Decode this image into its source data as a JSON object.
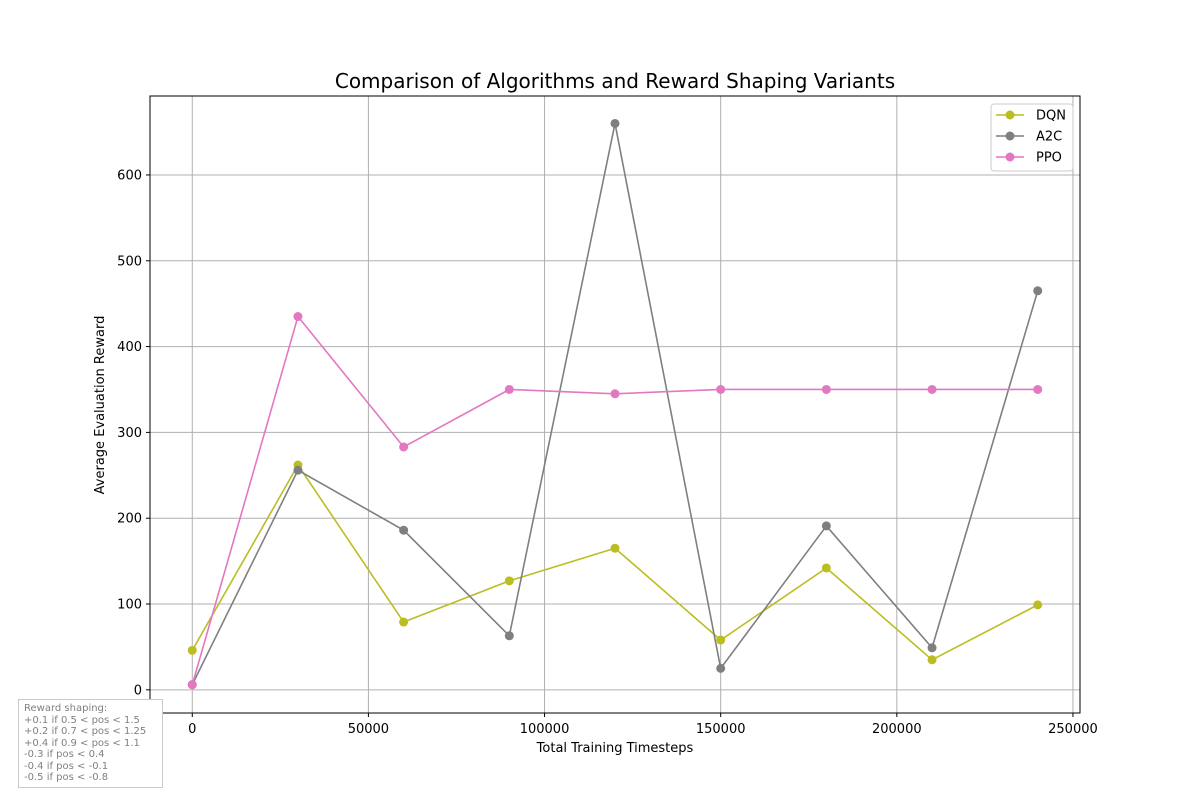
{
  "chart_data": {
    "type": "line",
    "title": "Comparison of Algorithms and Reward Shaping Variants",
    "xlabel": "Total Training Timesteps",
    "ylabel": "Average Evaluation Reward",
    "xlim": [
      -12000,
      252000
    ],
    "ylim": [
      -27,
      692
    ],
    "xticks": [
      0,
      50000,
      100000,
      150000,
      200000,
      250000
    ],
    "yticks": [
      0,
      100,
      200,
      300,
      400,
      500,
      600
    ],
    "grid": true,
    "legend_position": "top-right",
    "x": [
      0,
      30000,
      60000,
      90000,
      120000,
      150000,
      180000,
      210000,
      240000
    ],
    "series": [
      {
        "name": "DQN",
        "color": "#bcbd22",
        "values": [
          46,
          262,
          79,
          127,
          165,
          58,
          142,
          35,
          99
        ]
      },
      {
        "name": "A2C",
        "color": "#7f7f7f",
        "values": [
          6,
          256,
          186,
          63,
          660,
          25,
          191,
          49,
          465
        ]
      },
      {
        "name": "PPO",
        "color": "#e377c2",
        "values": [
          6,
          435,
          283,
          350,
          345,
          350,
          350,
          350,
          350
        ]
      }
    ],
    "annotation": {
      "lines": [
        "Reward shaping:",
        "+0.1 if 0.5 < pos < 1.5",
        "+0.2 if 0.7 < pos < 1.25",
        "+0.4 if 0.9 < pos < 1.1",
        "-0.3 if pos < 0.4",
        "-0.4 if pos < -0.1",
        "-0.5 if pos < -0.8"
      ]
    }
  }
}
